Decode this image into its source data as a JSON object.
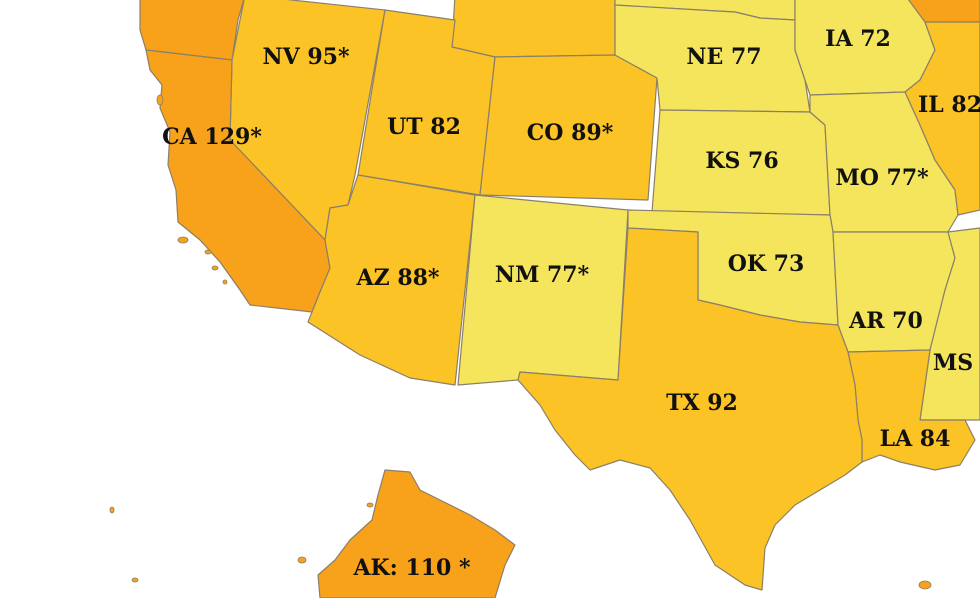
{
  "legend_colors": {
    "low": "#f4e55c",
    "mid": "#fbc325",
    "high": "#f8a21c"
  },
  "states": [
    {
      "id": "CA",
      "label": "CA 129*",
      "value": 129,
      "starred": true,
      "level": "high"
    },
    {
      "id": "NV",
      "label": "NV 95*",
      "value": 95,
      "starred": true,
      "level": "mid"
    },
    {
      "id": "UT",
      "label": "UT 82",
      "value": 82,
      "starred": false,
      "level": "mid"
    },
    {
      "id": "CO",
      "label": "CO 89*",
      "value": 89,
      "starred": true,
      "level": "mid"
    },
    {
      "id": "AZ",
      "label": "AZ 88*",
      "value": 88,
      "starred": true,
      "level": "mid"
    },
    {
      "id": "NM",
      "label": "NM 77*",
      "value": 77,
      "starred": true,
      "level": "low"
    },
    {
      "id": "NE",
      "label": "NE 77",
      "value": 77,
      "starred": false,
      "level": "low"
    },
    {
      "id": "KS",
      "label": "KS 76",
      "value": 76,
      "starred": false,
      "level": "low"
    },
    {
      "id": "OK",
      "label": "OK 73",
      "value": 73,
      "starred": false,
      "level": "low"
    },
    {
      "id": "TX",
      "label": "TX 92",
      "value": 92,
      "starred": false,
      "level": "mid"
    },
    {
      "id": "IA",
      "label": "IA 72",
      "value": 72,
      "starred": false,
      "level": "low"
    },
    {
      "id": "MO",
      "label": "MO 77*",
      "value": 77,
      "starred": true,
      "level": "low"
    },
    {
      "id": "AR",
      "label": "AR 70",
      "value": 70,
      "starred": false,
      "level": "low"
    },
    {
      "id": "LA",
      "label": "LA 84",
      "value": 84,
      "starred": false,
      "level": "mid"
    },
    {
      "id": "IL",
      "label": "IL 82",
      "value": 82,
      "starred": false,
      "level": "mid"
    },
    {
      "id": "MS",
      "label": "MS",
      "value": null,
      "starred": false,
      "level": "low"
    },
    {
      "id": "AK",
      "label": "AK:  110 *",
      "value": 110,
      "starred": true,
      "level": "high"
    },
    {
      "id": "WY",
      "label": "",
      "value": null,
      "starred": false,
      "level": "mid"
    },
    {
      "id": "SD",
      "label": "",
      "value": null,
      "starred": false,
      "level": "low"
    },
    {
      "id": "OR",
      "label": "",
      "value": null,
      "starred": false,
      "level": "high"
    },
    {
      "id": "WI",
      "label": "",
      "value": null,
      "starred": false,
      "level": "high"
    }
  ]
}
